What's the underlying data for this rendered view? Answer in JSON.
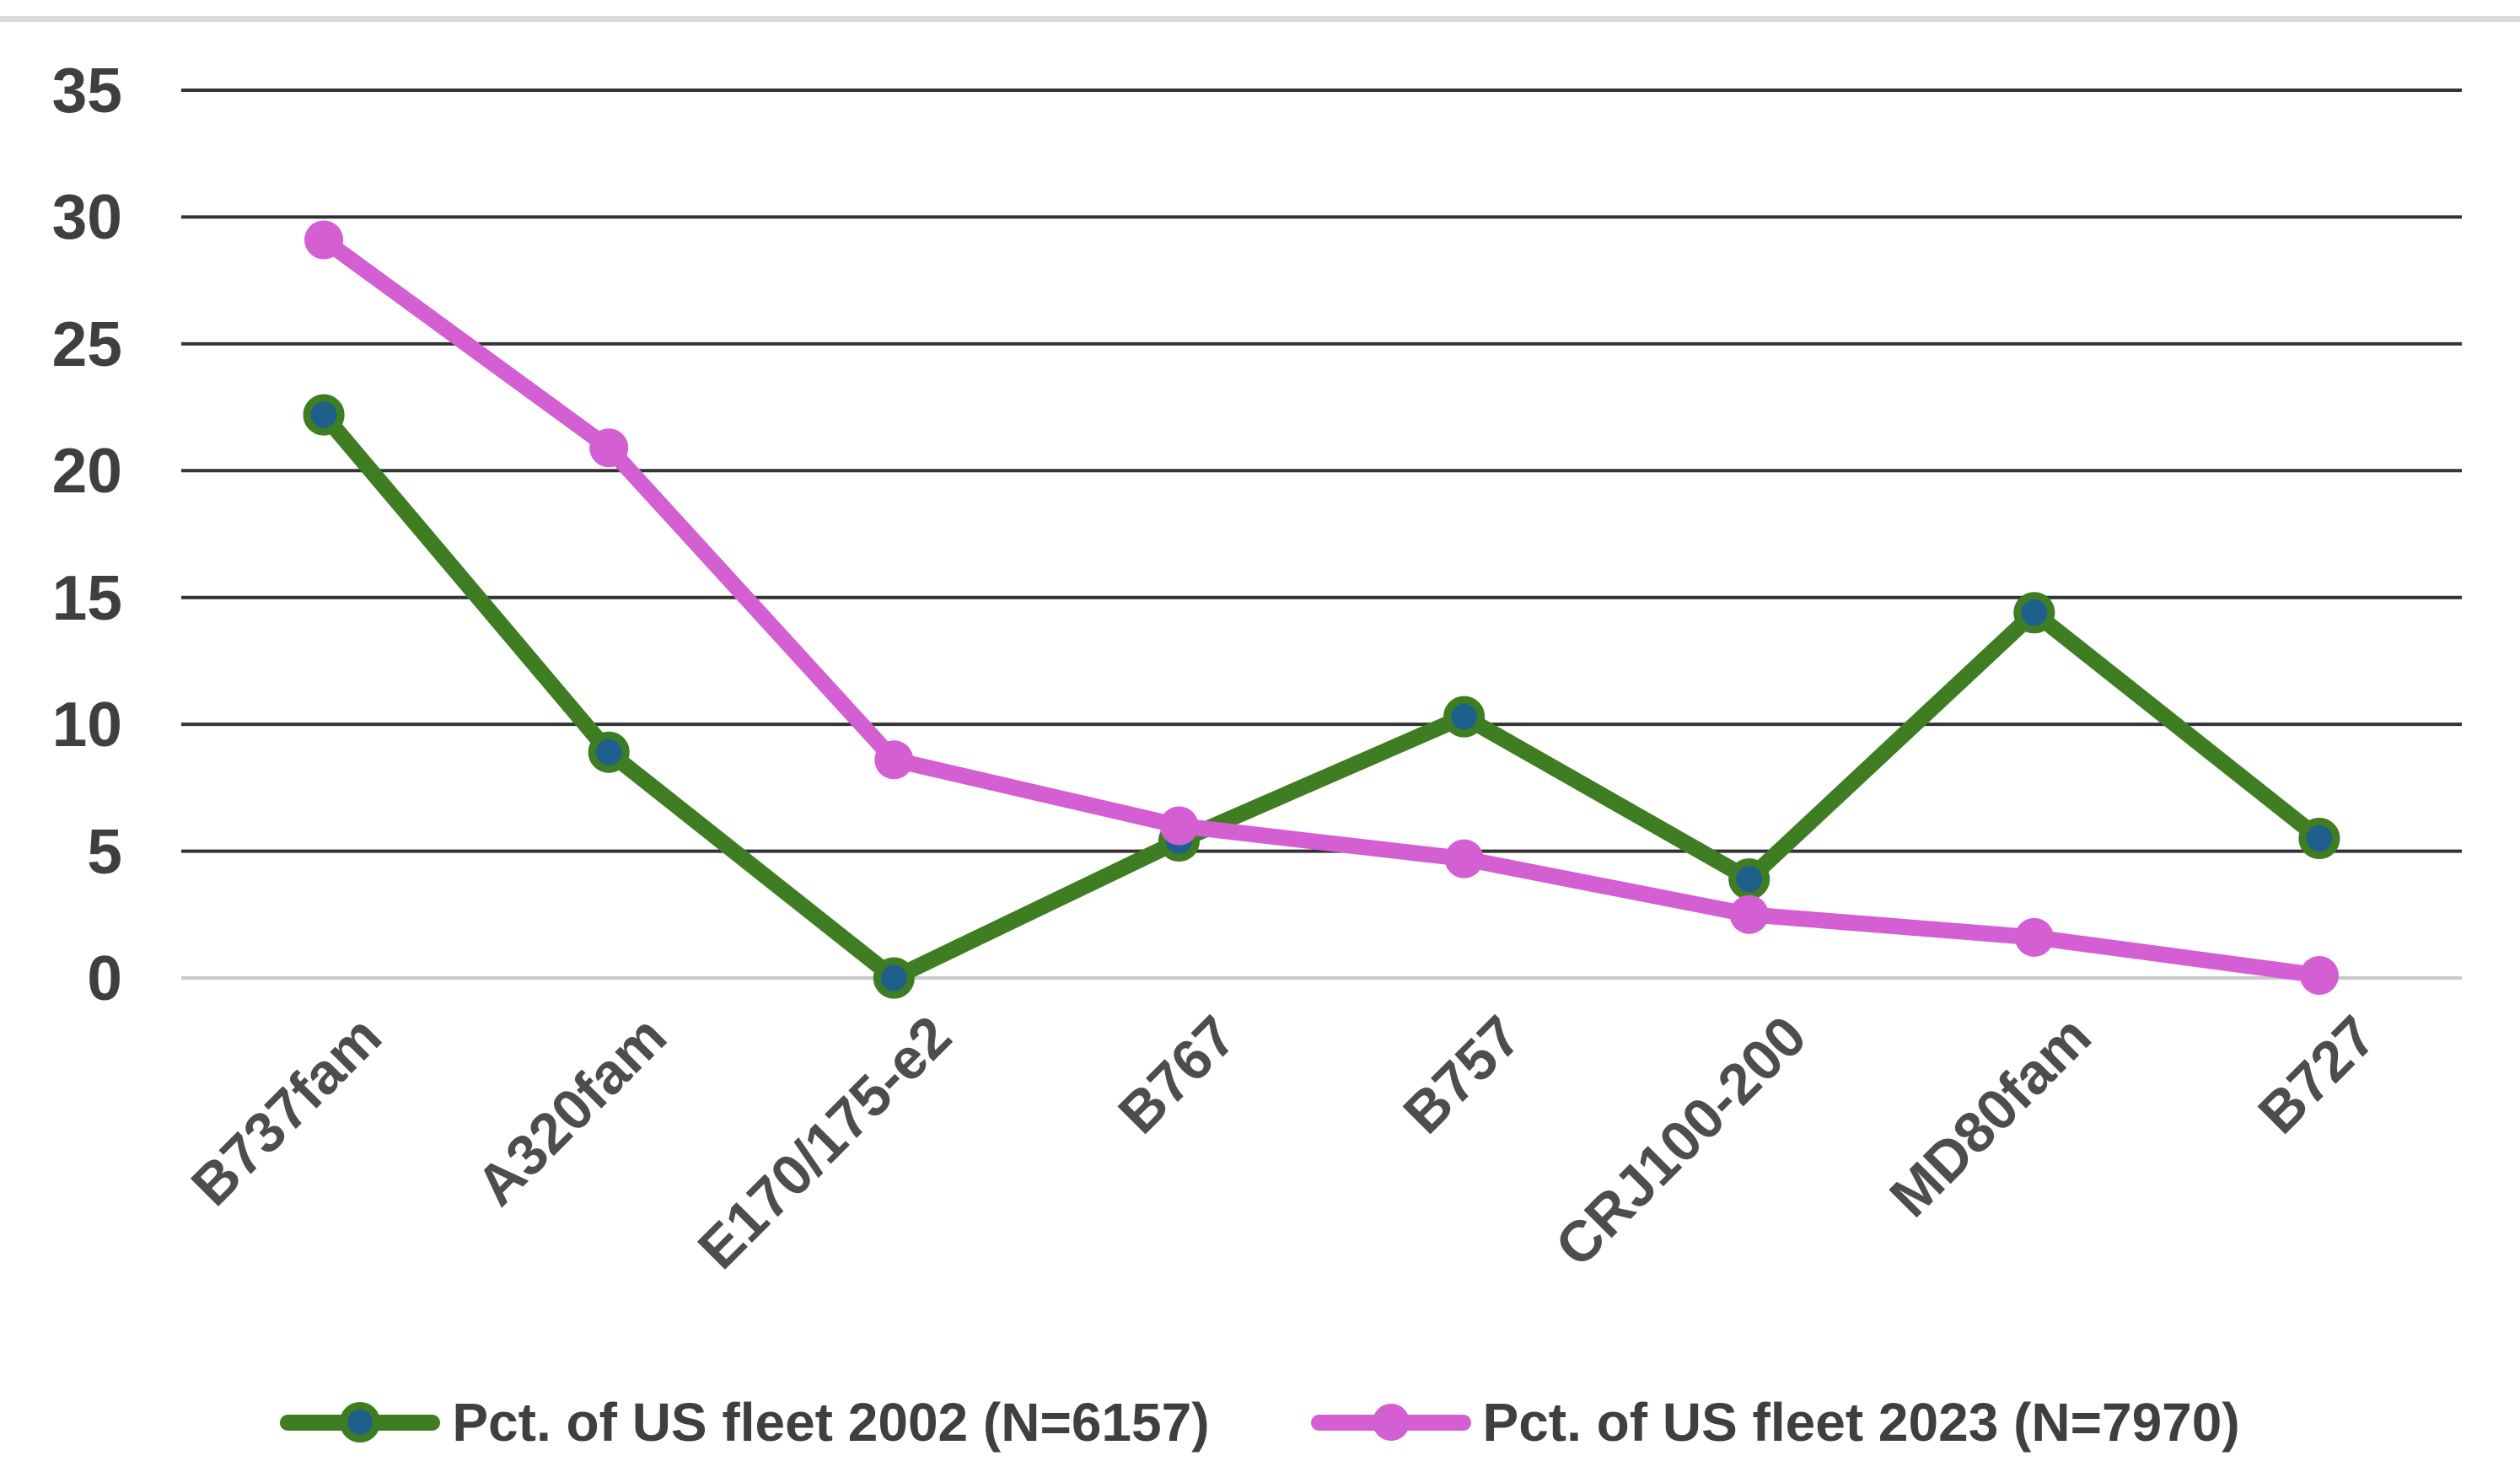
{
  "chart_data": {
    "type": "line",
    "categories": [
      "B737fam",
      "A320fam",
      "E170/175-e2",
      "B767",
      "B757",
      "CRJ100-200",
      "MD80fam",
      "B727"
    ],
    "series": [
      {
        "name": "Pct. of US fleet 2002 (N=6157)",
        "values": [
          22.2,
          8.9,
          0.0,
          5.4,
          10.3,
          3.9,
          14.4,
          5.5
        ],
        "line_color": "#3E7D22",
        "marker_fill": "#1F5F8C",
        "marker_outline": "#3E7D22"
      },
      {
        "name": "Pct. of US fleet 2023 (N=7970)",
        "values": [
          29.1,
          20.9,
          8.6,
          6.0,
          4.7,
          2.5,
          1.6,
          0.1
        ],
        "line_color": "#D35FD3",
        "marker_fill": "#D35FD3",
        "marker_outline": "#D35FD3"
      }
    ],
    "y_axis": {
      "min": 0,
      "max": 35,
      "tick_step": 5,
      "ticks": [
        35,
        30,
        25,
        20,
        15,
        10,
        5,
        0
      ]
    },
    "x_axis": {
      "label_rotation_deg": 45
    },
    "grid": "horizontal",
    "legend_position": "bottom",
    "colors": {
      "gridline": "#333333",
      "zero_gridline": "#C9C9C9",
      "axis_text": "#3F3F3F",
      "top_divider": "#DCDCDC",
      "background": "#FFFFFF"
    }
  }
}
